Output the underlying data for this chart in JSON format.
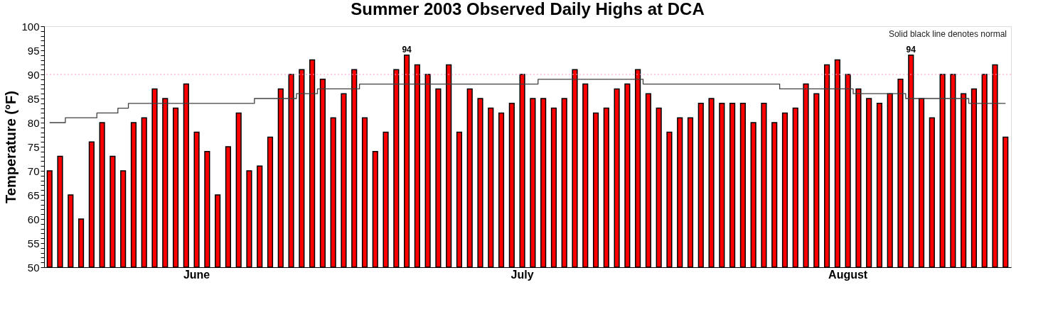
{
  "chart_data": {
    "type": "bar",
    "title": "Summer 2003 Observed Daily Highs at DCA",
    "ylabel": "Temperature (°F)",
    "categories": [
      null,
      null,
      null,
      null,
      null,
      null,
      null,
      null,
      null,
      null,
      null,
      null,
      null,
      null,
      "June",
      null,
      null,
      null,
      null,
      null,
      null,
      null,
      null,
      null,
      null,
      null,
      null,
      null,
      null,
      null,
      null,
      null,
      null,
      null,
      null,
      null,
      null,
      null,
      null,
      null,
      null,
      null,
      null,
      null,
      null,
      "July",
      null,
      null,
      null,
      null,
      null,
      null,
      null,
      null,
      null,
      null,
      null,
      null,
      null,
      null,
      null,
      null,
      null,
      null,
      null,
      null,
      null,
      null,
      null,
      null,
      null,
      null,
      null,
      null,
      null,
      null,
      "August",
      null,
      null,
      null,
      null,
      null,
      null,
      null,
      null,
      null,
      null,
      null,
      null,
      null,
      null,
      null
    ],
    "series": [
      {
        "color": "#ff0000",
        "values": [
          70,
          73,
          65,
          60,
          76,
          80,
          73,
          70,
          80,
          81,
          87,
          85,
          83,
          88,
          78,
          74,
          65,
          75,
          82,
          70,
          71,
          77,
          87,
          90,
          91,
          93,
          89,
          81,
          86,
          91,
          81,
          74,
          78,
          91,
          94,
          92,
          90,
          87,
          92,
          78,
          87,
          85,
          83,
          82,
          84,
          90,
          85,
          85,
          83,
          85,
          91,
          88,
          82,
          83,
          87,
          88,
          91,
          86,
          83,
          78,
          81,
          81,
          84,
          85,
          84,
          84,
          84,
          80,
          84,
          80,
          82,
          83,
          88,
          86,
          92,
          93,
          90,
          87,
          85,
          84,
          86,
          89,
          94,
          85,
          81,
          90,
          90,
          86,
          87,
          90,
          92,
          77
        ],
        "value_labels": [
          null,
          null,
          null,
          null,
          null,
          null,
          null,
          null,
          null,
          null,
          null,
          null,
          null,
          null,
          null,
          null,
          null,
          null,
          null,
          null,
          null,
          null,
          null,
          null,
          null,
          null,
          null,
          null,
          null,
          null,
          null,
          null,
          null,
          null,
          "94",
          null,
          null,
          null,
          null,
          null,
          null,
          null,
          null,
          null,
          null,
          null,
          null,
          null,
          null,
          null,
          null,
          null,
          null,
          null,
          null,
          null,
          null,
          null,
          null,
          null,
          null,
          null,
          null,
          null,
          null,
          null,
          null,
          null,
          null,
          null,
          null,
          null,
          null,
          null,
          null,
          null,
          null,
          null,
          null,
          null,
          null,
          null,
          "94",
          null,
          null,
          null,
          null,
          null,
          null,
          null,
          null,
          null
        ]
      },
      {
        "type": "step",
        "color": "#404040",
        "values": [
          80,
          80,
          81,
          81,
          81,
          82,
          82,
          83,
          84,
          84,
          84,
          84,
          84,
          84,
          84,
          84,
          84,
          84,
          84,
          84,
          85,
          85,
          85,
          85,
          86,
          86,
          87,
          87,
          87,
          87,
          88,
          88,
          88,
          88,
          88,
          88,
          88,
          88,
          88,
          88,
          88,
          88,
          88,
          88,
          88,
          88,
          88,
          89,
          89,
          89,
          89,
          89,
          89,
          89,
          89,
          89,
          89,
          88,
          88,
          88,
          88,
          88,
          88,
          88,
          88,
          88,
          88,
          88,
          88,
          88,
          87,
          87,
          87,
          87,
          87,
          87,
          87,
          86,
          86,
          86,
          86,
          86,
          85,
          85,
          85,
          85,
          85,
          85,
          84,
          84,
          84,
          84
        ]
      }
    ],
    "ylim": [
      50,
      100
    ],
    "yticks": [
      50,
      {
        "value": 51,
        "label": null
      },
      {
        "value": 52,
        "label": null
      },
      {
        "value": 53,
        "label": null
      },
      {
        "value": 54,
        "label": null
      },
      55,
      {
        "value": 56,
        "label": null
      },
      {
        "value": 57,
        "label": null
      },
      {
        "value": 58,
        "label": null
      },
      {
        "value": 59,
        "label": null
      },
      60,
      {
        "value": 61,
        "label": null
      },
      {
        "value": 62,
        "label": null
      },
      {
        "value": 63,
        "label": null
      },
      {
        "value": 64,
        "label": null
      },
      65,
      {
        "value": 66,
        "label": null
      },
      {
        "value": 67,
        "label": null
      },
      {
        "value": 68,
        "label": null
      },
      {
        "value": 69,
        "label": null
      },
      70,
      {
        "value": 71,
        "label": null
      },
      {
        "value": 72,
        "label": null
      },
      {
        "value": 73,
        "label": null
      },
      {
        "value": 74,
        "label": null
      },
      75,
      {
        "value": 76,
        "label": null
      },
      {
        "value": 77,
        "label": null
      },
      {
        "value": 78,
        "label": null
      },
      {
        "value": 79,
        "label": null
      },
      80,
      {
        "value": 81,
        "label": null
      },
      {
        "value": 82,
        "label": null
      },
      {
        "value": 83,
        "label": null
      },
      {
        "value": 84,
        "label": null
      },
      85,
      {
        "value": 86,
        "label": null
      },
      {
        "value": 87,
        "label": null
      },
      {
        "value": 88,
        "label": null
      },
      {
        "value": 89,
        "label": null
      },
      90,
      {
        "value": 91,
        "label": null
      },
      {
        "value": 92,
        "label": null
      },
      {
        "value": 93,
        "label": null
      },
      {
        "value": 94,
        "label": null
      },
      95,
      {
        "value": 96,
        "label": null
      },
      {
        "value": 97,
        "label": null
      },
      {
        "value": 98,
        "label": null
      },
      {
        "value": 99,
        "label": null
      },
      100
    ],
    "ref_lines": [
      {
        "axis": "y",
        "value": 90,
        "color": "#ff99cc",
        "line_style": "dotted"
      }
    ],
    "annotations": [
      "Solid black line denotes normal"
    ],
    "grid": false
  }
}
